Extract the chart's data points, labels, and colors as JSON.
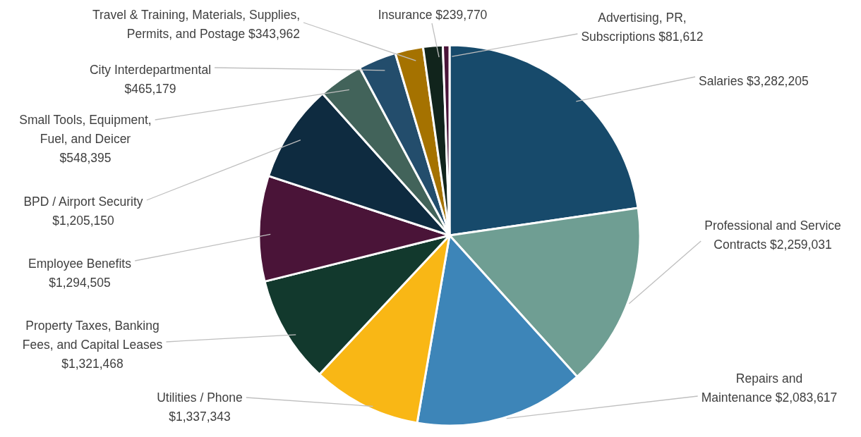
{
  "chart_data": {
    "type": "pie",
    "categories": [
      "Salaries",
      "Professional and Service Contracts",
      "Repairs and Maintenance",
      "Utilities / Phone",
      "Property Taxes, Banking Fees, and Capital Leases",
      "Employee Benefits",
      "BPD / Airport Security",
      "Small Tools, Equipment, Fuel, and Deicer",
      "City Interdepartmental",
      "Travel & Training, Materials, Supplies, Permits, and Postage",
      "Insurance",
      "Advertising, PR, Subscriptions"
    ],
    "values": [
      3282205,
      2259031,
      2083617,
      1337343,
      1321468,
      1294505,
      1205150,
      548395,
      465179,
      343962,
      239770,
      81612
    ],
    "value_labels": [
      "$3,282,205",
      "$2,259,031",
      "$2,083,617",
      "$1,337,343",
      "$1,321,468",
      "$1,294,505",
      "$1,205,150",
      "$548,395",
      "$465,179",
      "$343,962",
      "$239,770",
      "$81,612"
    ],
    "colors": [
      "#174a6b",
      "#6f9e93",
      "#3d85b8",
      "#f9b715",
      "#12392d",
      "#4a1438",
      "#0e2b40",
      "#42635a",
      "#234d6c",
      "#a57200",
      "#11241c",
      "#4a1438"
    ]
  }
}
